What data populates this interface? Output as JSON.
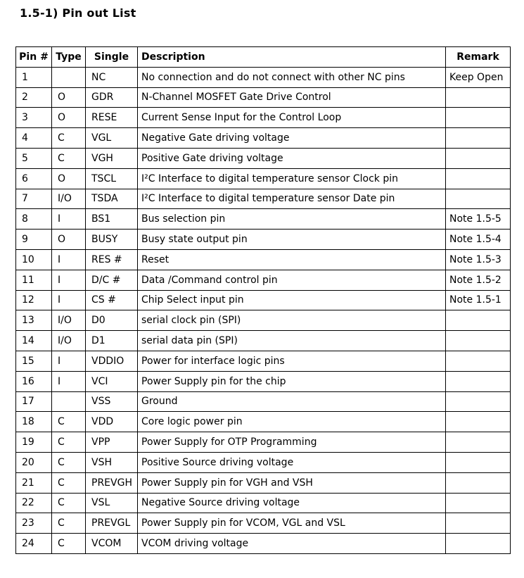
{
  "title": "1.5-1) Pin out List",
  "table": {
    "headers": {
      "pin": "Pin #",
      "type": "Type",
      "single": "Single",
      "description": "Description",
      "remark": "Remark"
    },
    "rows": [
      {
        "pin": "1",
        "type": "",
        "single": "NC",
        "description": "No connection and do not connect with other NC pins",
        "remark": "Keep Open"
      },
      {
        "pin": "2",
        "type": "O",
        "single": "GDR",
        "description": "N-Channel MOSFET Gate Drive Control",
        "remark": ""
      },
      {
        "pin": "3",
        "type": "O",
        "single": "RESE",
        "description": "Current Sense Input for the Control Loop",
        "remark": ""
      },
      {
        "pin": "4",
        "type": "C",
        "single": "VGL",
        "description": "Negative Gate driving voltage",
        "remark": ""
      },
      {
        "pin": "5",
        "type": "C",
        "single": "VGH",
        "description": "Positive Gate driving voltage",
        "remark": ""
      },
      {
        "pin": "6",
        "type": "O",
        "single": "TSCL",
        "description": "I²C Interface to digital temperature sensor Clock pin",
        "remark": ""
      },
      {
        "pin": "7",
        "type": "I/O",
        "single": "TSDA",
        "description": "I²C Interface to digital temperature sensor Date pin",
        "remark": ""
      },
      {
        "pin": "8",
        "type": "I",
        "single": "BS1",
        "description": "Bus selection pin",
        "remark": "Note 1.5-5"
      },
      {
        "pin": "9",
        "type": "O",
        "single": "BUSY",
        "description": "Busy state output pin",
        "remark": "Note 1.5-4"
      },
      {
        "pin": "10",
        "type": "I",
        "single": "RES #",
        "description": "Reset",
        "remark": "Note 1.5-3"
      },
      {
        "pin": "11",
        "type": "I",
        "single": "D/C #",
        "description": "Data /Command control pin",
        "remark": "Note 1.5-2"
      },
      {
        "pin": "12",
        "type": "I",
        "single": "CS #",
        "description": "Chip Select input pin",
        "remark": "Note 1.5-1"
      },
      {
        "pin": "13",
        "type": "I/O",
        "single": "D0",
        "description": "serial clock pin (SPI)",
        "remark": ""
      },
      {
        "pin": "14",
        "type": "I/O",
        "single": "D1",
        "description": "serial data pin (SPI)",
        "remark": ""
      },
      {
        "pin": "15",
        "type": "I",
        "single": "VDDIO",
        "description": "Power for interface logic pins",
        "remark": ""
      },
      {
        "pin": "16",
        "type": "I",
        "single": "VCI",
        "description": "Power Supply pin for the chip",
        "remark": ""
      },
      {
        "pin": "17",
        "type": "",
        "single": "VSS",
        "description": "Ground",
        "remark": ""
      },
      {
        "pin": "18",
        "type": "C",
        "single": "VDD",
        "description": "Core logic power pin",
        "remark": ""
      },
      {
        "pin": "19",
        "type": "C",
        "single": "VPP",
        "description": "Power Supply for OTP Programming",
        "remark": ""
      },
      {
        "pin": "20",
        "type": "C",
        "single": "VSH",
        "description": "Positive Source driving voltage",
        "remark": ""
      },
      {
        "pin": "21",
        "type": "C",
        "single": "PREVGH",
        "description": "Power Supply pin for VGH and VSH",
        "remark": ""
      },
      {
        "pin": "22",
        "type": "C",
        "single": "VSL",
        "description": "Negative Source driving voltage",
        "remark": ""
      },
      {
        "pin": "23",
        "type": "C",
        "single": "PREVGL",
        "description": "Power Supply pin for VCOM, VGL and VSL",
        "remark": ""
      },
      {
        "pin": "24",
        "type": "C",
        "single": "VCOM",
        "description": "VCOM driving voltage",
        "remark": ""
      }
    ]
  }
}
